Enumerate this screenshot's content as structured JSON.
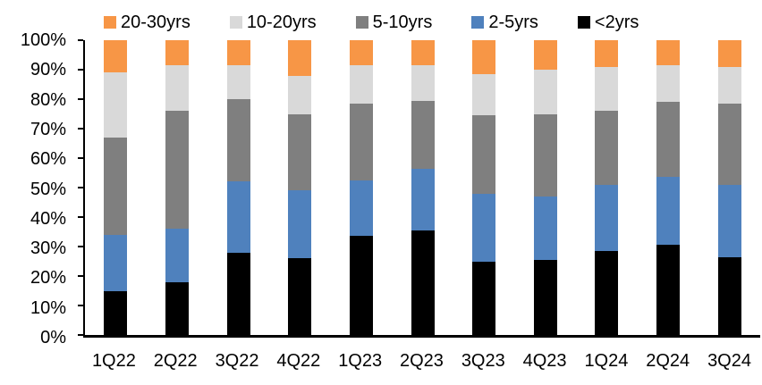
{
  "chart_data": {
    "type": "bar",
    "variant": "stacked-100-percent",
    "title": "",
    "xlabel": "",
    "ylabel": "",
    "unit": "%",
    "grid": false,
    "legend_position": "top",
    "ylim": [
      0,
      100
    ],
    "y_ticks": [
      "0%",
      "10%",
      "20%",
      "30%",
      "40%",
      "50%",
      "60%",
      "70%",
      "80%",
      "90%",
      "100%"
    ],
    "categories": [
      "1Q22",
      "2Q22",
      "3Q22",
      "4Q22",
      "1Q23",
      "2Q23",
      "3Q23",
      "4Q23",
      "1Q24",
      "2Q24",
      "3Q24"
    ],
    "series": [
      {
        "name": "<2yrs",
        "color": "#000000",
        "values": [
          15,
          18,
          28,
          26,
          33.5,
          35.5,
          25,
          25.5,
          28.5,
          30.5,
          26.5
        ]
      },
      {
        "name": "2-5yrs",
        "color": "#4F81BD",
        "values": [
          19,
          18,
          24,
          23,
          19,
          21,
          23,
          21.5,
          22.5,
          23,
          24.5
        ]
      },
      {
        "name": "5-10yrs",
        "color": "#7F7F7F",
        "values": [
          33,
          40,
          28,
          26,
          26,
          23,
          26.5,
          28,
          25,
          25.5,
          27.5
        ]
      },
      {
        "name": "10-20yrs",
        "color": "#D9D9D9",
        "values": [
          22,
          15.5,
          11.5,
          13,
          13,
          12,
          14,
          15,
          15,
          12.5,
          12.5
        ]
      },
      {
        "name": "20-30yrs",
        "color": "#F79646",
        "values": [
          11,
          8.5,
          8.5,
          12,
          8.5,
          8.5,
          11.5,
          10,
          9,
          8.5,
          9
        ]
      }
    ],
    "legend_order": [
      "20-30yrs",
      "10-20yrs",
      "5-10yrs",
      "2-5yrs",
      "<2yrs"
    ],
    "colors": {
      "axis": "#000000",
      "text": "#000000",
      "background": "#ffffff"
    }
  }
}
